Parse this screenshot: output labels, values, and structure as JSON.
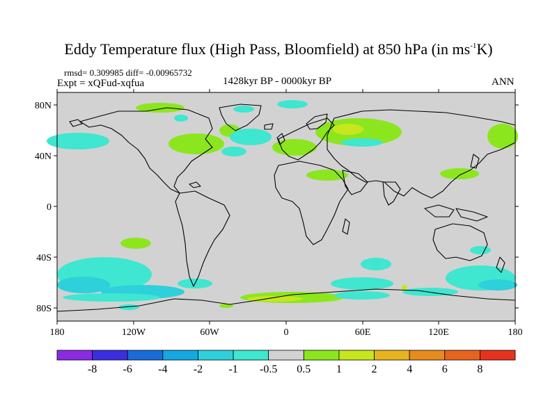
{
  "title": {
    "main": "Eddy Temperature flux (High Pass, Bloomfield) at 850 hPa (in ms",
    "sup": "-1",
    "tail": "K)"
  },
  "stats": {
    "rmsd_line": "rmsd= 0.309985 diff= -0.00965732"
  },
  "experiment": "Expt = xQFud-xqfua",
  "period": "1428kyr BP - 0000kyr BP",
  "season": "ANN",
  "axes": {
    "lat_labels": [
      "80N",
      "40N",
      "0",
      "40S",
      "80S"
    ],
    "lon_labels": [
      "180",
      "120W",
      "60W",
      "0",
      "60E",
      "120E",
      "180"
    ]
  },
  "colorbar": {
    "labels": [
      "-8",
      "-6",
      "-4",
      "-2",
      "-1",
      "-0.5",
      "0.5",
      "1",
      "2",
      "4",
      "6",
      "8"
    ],
    "colors": [
      "#8a2be2",
      "#3b2ee0",
      "#1a6bd9",
      "#15a8e0",
      "#2ed0dc",
      "#3fe6d0",
      "#d2d2d2",
      "#8ce61e",
      "#c8e61e",
      "#e6b41e",
      "#e68c1e",
      "#e6641e",
      "#e6321e"
    ]
  },
  "map": {
    "land_color": "#000000",
    "ocean_color": "#d2d2d2"
  }
}
